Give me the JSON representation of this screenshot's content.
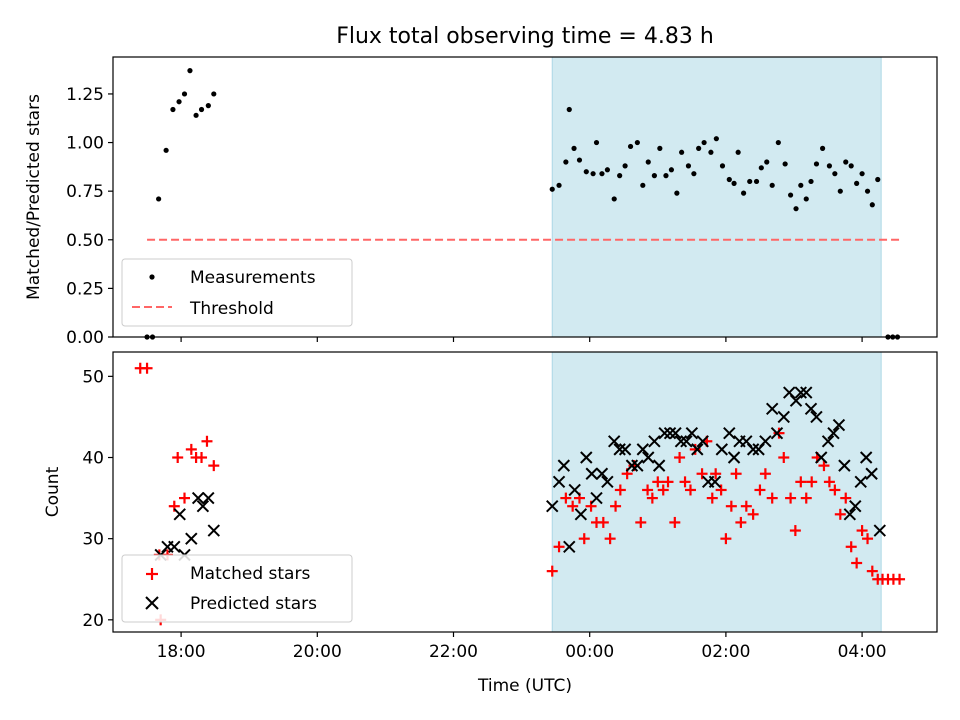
{
  "title": "Flux total observing time = 4.83 h",
  "xlabel": "Time (UTC)",
  "colors": {
    "band": "#add8e6",
    "threshold": "#ff6666",
    "matched": "#ff0000",
    "predicted": "#000000",
    "measurement": "#000000"
  },
  "chart_data": [
    {
      "type": "scatter",
      "panel": "top",
      "ylabel": "Matched/Predicted stars",
      "x_unit": "hours (UTC, relative to 00:00 of second day)",
      "xlim": [
        -7.0,
        5.1
      ],
      "ylim": [
        0.0,
        1.44
      ],
      "xticks": [
        -6,
        -4,
        -2,
        0,
        2,
        4
      ],
      "xtick_labels": [
        "18:00",
        "20:00",
        "22:00",
        "00:00",
        "02:00",
        "04:00"
      ],
      "yticks": [
        0,
        0.25,
        0.5,
        0.75,
        1.0,
        1.25
      ],
      "ytick_labels": [
        "0.00",
        "0.25",
        "0.50",
        "0.75",
        "1.00",
        "1.25"
      ],
      "shaded_span": [
        -0.55,
        4.28
      ],
      "legend": {
        "placement": "lower-left",
        "entries": [
          "Measurements",
          "Threshold"
        ]
      },
      "series": [
        {
          "name": "Measurements",
          "marker": "dot",
          "points": [
            [
              -6.5,
              0.0
            ],
            [
              -6.42,
              0.0
            ],
            [
              -6.33,
              0.71
            ],
            [
              -6.22,
              0.96
            ],
            [
              -6.12,
              1.17
            ],
            [
              -6.03,
              1.21
            ],
            [
              -5.95,
              1.25
            ],
            [
              -5.87,
              1.37
            ],
            [
              -5.78,
              1.14
            ],
            [
              -5.7,
              1.17
            ],
            [
              -5.6,
              1.19
            ],
            [
              -5.52,
              1.25
            ],
            [
              -0.55,
              0.76
            ],
            [
              -0.45,
              0.78
            ],
            [
              -0.35,
              0.9
            ],
            [
              -0.3,
              1.17
            ],
            [
              -0.23,
              0.97
            ],
            [
              -0.15,
              0.91
            ],
            [
              -0.05,
              0.85
            ],
            [
              0.05,
              0.84
            ],
            [
              0.1,
              1.0
            ],
            [
              0.18,
              0.84
            ],
            [
              0.26,
              0.86
            ],
            [
              0.36,
              0.71
            ],
            [
              0.44,
              0.83
            ],
            [
              0.52,
              0.88
            ],
            [
              0.6,
              0.98
            ],
            [
              0.7,
              1.0
            ],
            [
              0.78,
              0.78
            ],
            [
              0.86,
              0.9
            ],
            [
              0.95,
              0.83
            ],
            [
              1.03,
              0.97
            ],
            [
              1.12,
              0.83
            ],
            [
              1.2,
              0.86
            ],
            [
              1.28,
              0.74
            ],
            [
              1.35,
              0.95
            ],
            [
              1.45,
              0.88
            ],
            [
              1.53,
              0.84
            ],
            [
              1.6,
              0.97
            ],
            [
              1.68,
              1.0
            ],
            [
              1.78,
              0.95
            ],
            [
              1.86,
              1.02
            ],
            [
              1.95,
              0.88
            ],
            [
              2.05,
              0.81
            ],
            [
              2.12,
              0.79
            ],
            [
              2.18,
              0.95
            ],
            [
              2.26,
              0.74
            ],
            [
              2.35,
              0.8
            ],
            [
              2.45,
              0.8
            ],
            [
              2.52,
              0.87
            ],
            [
              2.6,
              0.9
            ],
            [
              2.68,
              0.78
            ],
            [
              2.77,
              1.0
            ],
            [
              2.87,
              0.89
            ],
            [
              2.95,
              0.73
            ],
            [
              3.03,
              0.66
            ],
            [
              3.1,
              0.78
            ],
            [
              3.18,
              0.71
            ],
            [
              3.25,
              0.8
            ],
            [
              3.33,
              0.89
            ],
            [
              3.42,
              0.97
            ],
            [
              3.52,
              0.88
            ],
            [
              3.6,
              0.84
            ],
            [
              3.68,
              0.75
            ],
            [
              3.76,
              0.9
            ],
            [
              3.84,
              0.88
            ],
            [
              3.92,
              0.79
            ],
            [
              4.0,
              0.84
            ],
            [
              4.08,
              0.75
            ],
            [
              4.15,
              0.68
            ],
            [
              4.23,
              0.81
            ],
            [
              4.38,
              0.0
            ],
            [
              4.45,
              0.0
            ],
            [
              4.52,
              0.0
            ]
          ]
        },
        {
          "name": "Threshold",
          "style": "dashed",
          "points": [
            [
              -6.5,
              0.5
            ],
            [
              4.55,
              0.5
            ]
          ]
        }
      ]
    },
    {
      "type": "scatter",
      "panel": "bottom",
      "ylabel": "Count",
      "x_unit": "hours (UTC, relative to 00:00 of second day)",
      "xlim": [
        -7.0,
        5.1
      ],
      "ylim": [
        18.5,
        53.0
      ],
      "xticks": [
        -6,
        -4,
        -2,
        0,
        2,
        4
      ],
      "xtick_labels": [
        "18:00",
        "20:00",
        "22:00",
        "00:00",
        "02:00",
        "04:00"
      ],
      "yticks": [
        20,
        30,
        40,
        50
      ],
      "ytick_labels": [
        "20",
        "30",
        "40",
        "50"
      ],
      "shaded_span": [
        -0.55,
        4.28
      ],
      "legend": {
        "placement": "lower-left",
        "entries": [
          "Matched stars",
          "Predicted stars"
        ]
      },
      "series": [
        {
          "name": "Matched stars",
          "marker": "plus",
          "points": [
            [
              -6.6,
              51
            ],
            [
              -6.5,
              51
            ],
            [
              -6.32,
              28
            ],
            [
              -6.3,
              20
            ],
            [
              -6.2,
              28
            ],
            [
              -6.1,
              34
            ],
            [
              -6.05,
              40
            ],
            [
              -5.95,
              35
            ],
            [
              -5.85,
              41
            ],
            [
              -5.78,
              40
            ],
            [
              -5.7,
              40
            ],
            [
              -5.62,
              42
            ],
            [
              -5.52,
              39
            ],
            [
              -0.55,
              26
            ],
            [
              -0.45,
              29
            ],
            [
              -0.35,
              35
            ],
            [
              -0.25,
              34
            ],
            [
              -0.15,
              35
            ],
            [
              -0.08,
              30
            ],
            [
              0.02,
              34
            ],
            [
              0.1,
              32
            ],
            [
              0.2,
              32
            ],
            [
              0.3,
              30
            ],
            [
              0.38,
              34
            ],
            [
              0.45,
              36
            ],
            [
              0.55,
              38
            ],
            [
              0.65,
              39
            ],
            [
              0.75,
              32
            ],
            [
              0.85,
              36
            ],
            [
              0.92,
              35
            ],
            [
              1.0,
              37
            ],
            [
              1.08,
              36
            ],
            [
              1.15,
              37
            ],
            [
              1.25,
              32
            ],
            [
              1.32,
              40
            ],
            [
              1.4,
              37
            ],
            [
              1.48,
              36
            ],
            [
              1.55,
              41
            ],
            [
              1.65,
              38
            ],
            [
              1.72,
              42
            ],
            [
              1.8,
              35
            ],
            [
              1.85,
              38
            ],
            [
              1.93,
              36
            ],
            [
              2.0,
              30
            ],
            [
              2.08,
              34
            ],
            [
              2.15,
              38
            ],
            [
              2.22,
              32
            ],
            [
              2.3,
              34
            ],
            [
              2.4,
              33
            ],
            [
              2.5,
              36
            ],
            [
              2.58,
              38
            ],
            [
              2.68,
              35
            ],
            [
              2.78,
              43
            ],
            [
              2.85,
              40
            ],
            [
              2.95,
              35
            ],
            [
              3.02,
              31
            ],
            [
              3.1,
              37
            ],
            [
              3.18,
              35
            ],
            [
              3.26,
              37
            ],
            [
              3.34,
              40
            ],
            [
              3.44,
              39
            ],
            [
              3.52,
              37
            ],
            [
              3.6,
              36
            ],
            [
              3.68,
              33
            ],
            [
              3.76,
              35
            ],
            [
              3.84,
              29
            ],
            [
              3.92,
              27
            ],
            [
              4.0,
              31
            ],
            [
              4.08,
              30
            ],
            [
              4.15,
              26
            ],
            [
              4.23,
              25
            ],
            [
              4.3,
              25
            ],
            [
              4.38,
              25
            ],
            [
              4.46,
              25
            ],
            [
              4.55,
              25
            ]
          ]
        },
        {
          "name": "Predicted stars",
          "marker": "x",
          "points": [
            [
              -6.3,
              28
            ],
            [
              -6.2,
              29
            ],
            [
              -6.1,
              29
            ],
            [
              -6.02,
              33
            ],
            [
              -5.95,
              28
            ],
            [
              -5.85,
              30
            ],
            [
              -5.75,
              35
            ],
            [
              -5.68,
              34
            ],
            [
              -5.6,
              35
            ],
            [
              -5.52,
              31
            ],
            [
              -0.55,
              34
            ],
            [
              -0.45,
              37
            ],
            [
              -0.38,
              39
            ],
            [
              -0.3,
              29
            ],
            [
              -0.22,
              36
            ],
            [
              -0.13,
              33
            ],
            [
              -0.05,
              40
            ],
            [
              0.03,
              38
            ],
            [
              0.1,
              35
            ],
            [
              0.18,
              38
            ],
            [
              0.26,
              37
            ],
            [
              0.36,
              42
            ],
            [
              0.44,
              41
            ],
            [
              0.52,
              41
            ],
            [
              0.62,
              39
            ],
            [
              0.7,
              39
            ],
            [
              0.78,
              41
            ],
            [
              0.86,
              40
            ],
            [
              0.95,
              42
            ],
            [
              1.02,
              39
            ],
            [
              1.1,
              43
            ],
            [
              1.18,
              43
            ],
            [
              1.26,
              43
            ],
            [
              1.34,
              42
            ],
            [
              1.42,
              42
            ],
            [
              1.5,
              43
            ],
            [
              1.58,
              41
            ],
            [
              1.66,
              42
            ],
            [
              1.74,
              37
            ],
            [
              1.84,
              37
            ],
            [
              1.94,
              41
            ],
            [
              2.05,
              43
            ],
            [
              2.12,
              40
            ],
            [
              2.2,
              42
            ],
            [
              2.3,
              42
            ],
            [
              2.4,
              41
            ],
            [
              2.48,
              41
            ],
            [
              2.58,
              42
            ],
            [
              2.68,
              46
            ],
            [
              2.75,
              43
            ],
            [
              2.85,
              45
            ],
            [
              2.93,
              48
            ],
            [
              3.03,
              47
            ],
            [
              3.1,
              48
            ],
            [
              3.18,
              48
            ],
            [
              3.25,
              46
            ],
            [
              3.33,
              45
            ],
            [
              3.4,
              40
            ],
            [
              3.5,
              42
            ],
            [
              3.58,
              43
            ],
            [
              3.66,
              44
            ],
            [
              3.74,
              39
            ],
            [
              3.82,
              33
            ],
            [
              3.9,
              34
            ],
            [
              3.98,
              37
            ],
            [
              4.06,
              40
            ],
            [
              4.14,
              38
            ],
            [
              4.26,
              31
            ]
          ]
        }
      ]
    }
  ]
}
